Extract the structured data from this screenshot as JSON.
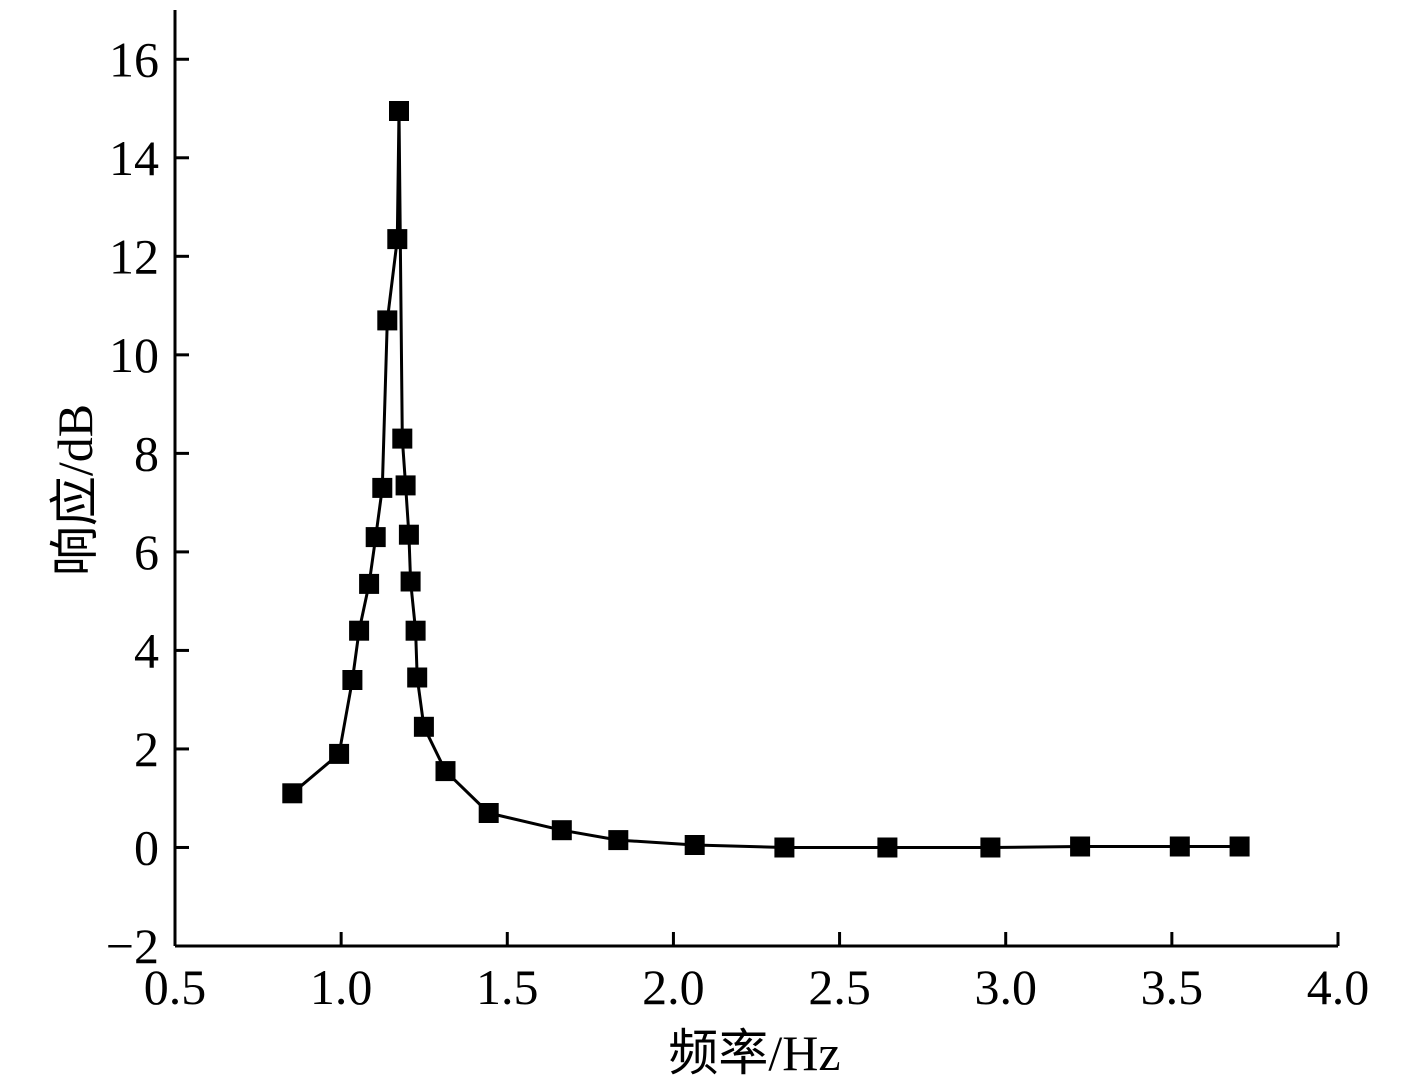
{
  "chart_data": {
    "type": "line",
    "title": "",
    "xlabel": "频率/Hz",
    "ylabel": "响应/dB",
    "xlim": [
      0.5,
      4.0
    ],
    "ylim": [
      -2,
      17
    ],
    "xticks": [
      0.5,
      1.0,
      1.5,
      2.0,
      2.5,
      3.0,
      3.5,
      4.0
    ],
    "xtick_labels": [
      "0.5",
      "1.0",
      "1.5",
      "2.0",
      "2.5",
      "3.0",
      "3.5",
      "4.0"
    ],
    "yticks": [
      -2,
      0,
      2,
      4,
      6,
      8,
      10,
      12,
      14,
      16
    ],
    "ytick_labels": [
      "−2",
      "0",
      "2",
      "4",
      "6",
      "8",
      "10",
      "12",
      "14",
      "16"
    ],
    "grid": false,
    "marker": "square",
    "line_color": "#000000",
    "marker_color": "#000000",
    "series": [
      {
        "x": [
          0.853,
          0.994,
          1.034,
          1.054,
          1.084,
          1.104,
          1.124,
          1.139,
          1.169,
          1.174,
          1.184,
          1.194,
          1.204,
          1.209,
          1.224,
          1.229,
          1.249,
          1.314,
          1.444,
          1.664,
          1.834,
          2.064,
          2.334,
          2.644,
          2.954,
          3.224,
          3.524,
          3.704
        ],
        "y": [
          1.1,
          1.9,
          3.4,
          4.4,
          5.35,
          6.3,
          7.3,
          10.7,
          12.35,
          14.95,
          8.3,
          7.35,
          6.35,
          5.4,
          4.4,
          3.45,
          2.45,
          1.55,
          0.7,
          0.35,
          0.15,
          0.05,
          0.0,
          0.0,
          0.0,
          0.02,
          0.02,
          0.02
        ]
      }
    ]
  }
}
